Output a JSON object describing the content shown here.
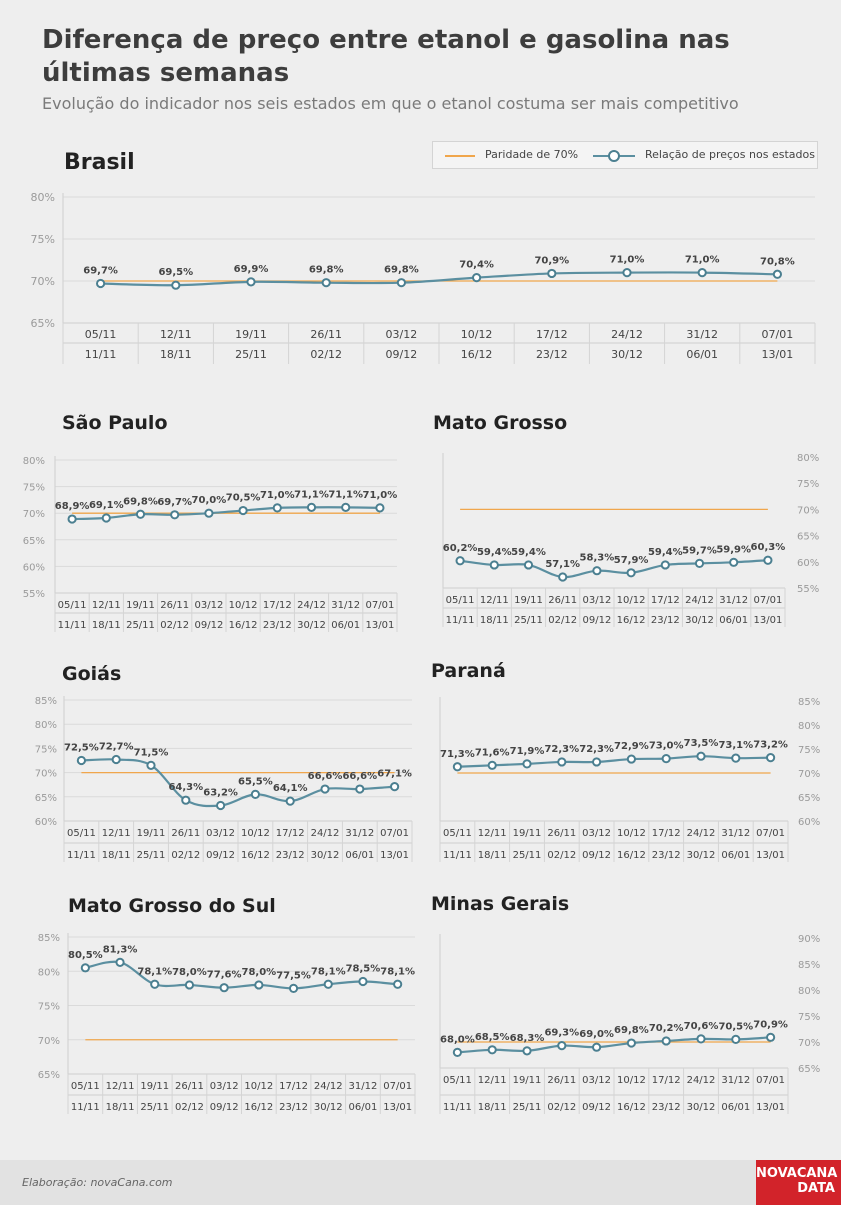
{
  "title": "Diferença de preço entre etanol e gasolina nas últimas semanas",
  "subtitle": "Evolução do indicador nos seis estados em que o etanol costuma ser mais competitivo",
  "legend": {
    "parity_label": "Paridade de 70%",
    "ratio_label": "Relação de preços nos estados"
  },
  "colors": {
    "parity": "#f0a64c",
    "series": "#5b8fa0",
    "marker": "#4b7f90",
    "background": "#eeeeee",
    "brand": "#d2232a"
  },
  "footer": {
    "credit": "Elaboração: novaCana.com",
    "logo_line1": "NOVACANA",
    "logo_line2": "DATA"
  },
  "chart_data": [
    {
      "id": "brasil",
      "type": "line",
      "title": "Brasil",
      "categories": [
        "05/11 - 11/11",
        "12/11 - 18/11",
        "19/11 - 25/11",
        "26/11 - 02/12",
        "03/12 - 09/12",
        "10/12 - 16/12",
        "17/12 - 23/12",
        "24/12 - 30/12",
        "31/12 - 06/01",
        "07/01 - 13/01"
      ],
      "tick_top": [
        "05/11",
        "12/11",
        "19/11",
        "26/11",
        "03/12",
        "10/12",
        "17/12",
        "24/12",
        "31/12",
        "07/01"
      ],
      "tick_bottom": [
        "11/11",
        "18/11",
        "25/11",
        "02/12",
        "09/12",
        "16/12",
        "23/12",
        "30/12",
        "06/01",
        "13/01"
      ],
      "values": [
        69.7,
        69.5,
        69.9,
        69.8,
        69.8,
        70.4,
        70.9,
        71.0,
        71.0,
        70.8
      ],
      "value_labels": [
        "69,7%",
        "69,5%",
        "69,9%",
        "69,8%",
        "69,8%",
        "70,4%",
        "70,9%",
        "71,0%",
        "71,0%",
        "70,8%"
      ],
      "parity": 70,
      "yticks": [
        80,
        75,
        70,
        65
      ],
      "ytick_labels": [
        "80%",
        "75%",
        "70%",
        "65%"
      ],
      "ylim": [
        65,
        80
      ],
      "yaxis_side": "left",
      "grid": true
    },
    {
      "id": "sao-paulo",
      "type": "line",
      "title": "São Paulo",
      "tick_top": [
        "05/11",
        "12/11",
        "19/11",
        "26/11",
        "03/12",
        "10/12",
        "17/12",
        "24/12",
        "31/12",
        "07/01"
      ],
      "tick_bottom": [
        "11/11",
        "18/11",
        "25/11",
        "02/12",
        "09/12",
        "16/12",
        "23/12",
        "30/12",
        "06/01",
        "13/01"
      ],
      "values": [
        68.9,
        69.1,
        69.8,
        69.7,
        70.0,
        70.5,
        71.0,
        71.1,
        71.1,
        71.0
      ],
      "value_labels": [
        "68,9%",
        "69,1%",
        "69,8%",
        "69,7%",
        "70,0%",
        "70,5%",
        "71,0%",
        "71,1%",
        "71,1%",
        "71,0%"
      ],
      "parity": 70,
      "yticks": [
        80,
        75,
        70,
        65,
        60,
        55
      ],
      "ytick_labels": [
        "80%",
        "75%",
        "70%",
        "65%",
        "60%",
        "55%"
      ],
      "ylim": [
        55,
        80
      ],
      "yaxis_side": "left",
      "grid": true
    },
    {
      "id": "mato-grosso",
      "type": "line",
      "title": "Mato Grosso",
      "tick_top": [
        "05/11",
        "12/11",
        "19/11",
        "26/11",
        "03/12",
        "10/12",
        "17/12",
        "24/12",
        "31/12",
        "07/01"
      ],
      "tick_bottom": [
        "11/11",
        "18/11",
        "25/11",
        "02/12",
        "09/12",
        "16/12",
        "23/12",
        "30/12",
        "06/01",
        "13/01"
      ],
      "values": [
        60.2,
        59.4,
        59.4,
        57.1,
        58.3,
        57.9,
        59.4,
        59.7,
        59.9,
        60.3
      ],
      "value_labels": [
        "60,2%",
        "59,4%",
        "59,4%",
        "57,1%",
        "58,3%",
        "57,9%",
        "59,4%",
        "59,7%",
        "59,9%",
        "60,3%"
      ],
      "parity": 70,
      "yticks": [
        80,
        75,
        70,
        65,
        60,
        55
      ],
      "ytick_labels": [
        "80%",
        "75%",
        "70%",
        "65%",
        "60%",
        "55%"
      ],
      "ylim": [
        55,
        80
      ],
      "yaxis_side": "right",
      "grid": false
    },
    {
      "id": "goias",
      "type": "line",
      "title": "Goiás",
      "tick_top": [
        "05/11",
        "12/11",
        "19/11",
        "26/11",
        "03/12",
        "10/12",
        "17/12",
        "24/12",
        "31/12",
        "07/01"
      ],
      "tick_bottom": [
        "11/11",
        "18/11",
        "25/11",
        "02/12",
        "09/12",
        "16/12",
        "23/12",
        "30/12",
        "06/01",
        "13/01"
      ],
      "values": [
        72.5,
        72.7,
        71.5,
        64.3,
        63.2,
        65.5,
        64.1,
        66.6,
        66.6,
        67.1
      ],
      "value_labels": [
        "72,5%",
        "72,7%",
        "71,5%",
        "64,3%",
        "63,2%",
        "65,5%",
        "64,1%",
        "66,6%",
        "66,6%",
        "67,1%"
      ],
      "parity": 70,
      "yticks": [
        85,
        80,
        75,
        70,
        65,
        60
      ],
      "ytick_labels": [
        "85%",
        "80%",
        "75%",
        "70%",
        "65%",
        "60%"
      ],
      "ylim": [
        60,
        85
      ],
      "yaxis_side": "left",
      "grid": true
    },
    {
      "id": "parana",
      "type": "line",
      "title": "Paraná",
      "tick_top": [
        "05/11",
        "12/11",
        "19/11",
        "26/11",
        "03/12",
        "10/12",
        "17/12",
        "24/12",
        "31/12",
        "07/01"
      ],
      "tick_bottom": [
        "11/11",
        "18/11",
        "25/11",
        "02/12",
        "09/12",
        "16/12",
        "23/12",
        "30/12",
        "06/01",
        "13/01"
      ],
      "values": [
        71.3,
        71.6,
        71.9,
        72.3,
        72.3,
        72.9,
        73.0,
        73.5,
        73.1,
        73.2
      ],
      "value_labels": [
        "71,3%",
        "71,6%",
        "71,9%",
        "72,3%",
        "72,3%",
        "72,9%",
        "73,0%",
        "73,5%",
        "73,1%",
        "73,2%"
      ],
      "parity": 70,
      "yticks": [
        85,
        80,
        75,
        70,
        65,
        60
      ],
      "ytick_labels": [
        "85%",
        "80%",
        "75%",
        "70%",
        "65%",
        "60%"
      ],
      "ylim": [
        60,
        85
      ],
      "yaxis_side": "right",
      "grid": false
    },
    {
      "id": "mato-grosso-do-sul",
      "type": "line",
      "title": "Mato Grosso do Sul",
      "tick_top": [
        "05/11",
        "12/11",
        "19/11",
        "26/11",
        "03/12",
        "10/12",
        "17/12",
        "24/12",
        "31/12",
        "07/01"
      ],
      "tick_bottom": [
        "11/11",
        "18/11",
        "25/11",
        "02/12",
        "09/12",
        "16/12",
        "23/12",
        "30/12",
        "06/01",
        "13/01"
      ],
      "values": [
        80.5,
        81.3,
        78.1,
        78.0,
        77.6,
        78.0,
        77.5,
        78.1,
        78.5,
        78.1
      ],
      "value_labels": [
        "80,5%",
        "81,3%",
        "78,1%",
        "78,0%",
        "77,6%",
        "78,0%",
        "77,5%",
        "78,1%",
        "78,5%",
        "78,1%"
      ],
      "parity": 70,
      "yticks": [
        85,
        80,
        75,
        70,
        65
      ],
      "ytick_labels": [
        "85%",
        "80%",
        "75%",
        "70%",
        "65%"
      ],
      "ylim": [
        65,
        85
      ],
      "yaxis_side": "left",
      "grid": true
    },
    {
      "id": "minas-gerais",
      "type": "line",
      "title": "Minas Gerais",
      "tick_top": [
        "05/11",
        "12/11",
        "19/11",
        "26/11",
        "03/12",
        "10/12",
        "17/12",
        "24/12",
        "31/12",
        "07/01"
      ],
      "tick_bottom": [
        "11/11",
        "18/11",
        "25/11",
        "02/12",
        "09/12",
        "16/12",
        "23/12",
        "30/12",
        "06/01",
        "13/01"
      ],
      "values": [
        68.0,
        68.5,
        68.3,
        69.3,
        69.0,
        69.8,
        70.2,
        70.6,
        70.5,
        70.9
      ],
      "value_labels": [
        "68,0%",
        "68,5%",
        "68,3%",
        "69,3%",
        "69,0%",
        "69,8%",
        "70,2%",
        "70,6%",
        "70,5%",
        "70,9%"
      ],
      "parity": 70,
      "yticks": [
        90,
        85,
        80,
        75,
        70,
        65
      ],
      "ytick_labels": [
        "90%",
        "85%",
        "80%",
        "75%",
        "70%",
        "65%"
      ],
      "ylim": [
        65,
        90
      ],
      "yaxis_side": "right",
      "grid": false
    }
  ]
}
